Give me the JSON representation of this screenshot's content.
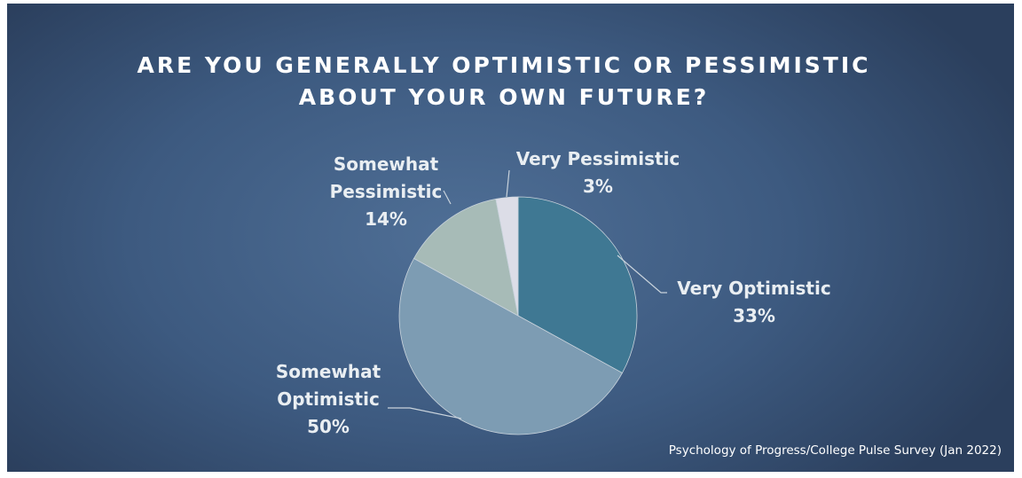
{
  "chart_data": {
    "type": "pie",
    "title": "ARE YOU GENERALLY OPTIMISTIC OR PESSIMISTIC ABOUT YOUR OWN FUTURE?",
    "categories": [
      "Very Optimistic",
      "Somewhat Optimistic",
      "Somewhat Pessimistic",
      "Very Pessimistic"
    ],
    "values": [
      33,
      50,
      14,
      3
    ],
    "value_labels": [
      "33%",
      "50%",
      "14%",
      "3%"
    ],
    "colors": [
      "#3f7893",
      "#7d9cb3",
      "#a7bbb7",
      "#dcdde7"
    ],
    "source": "Psychology of Progress/College Pulse Survey (Jan 2022)"
  }
}
